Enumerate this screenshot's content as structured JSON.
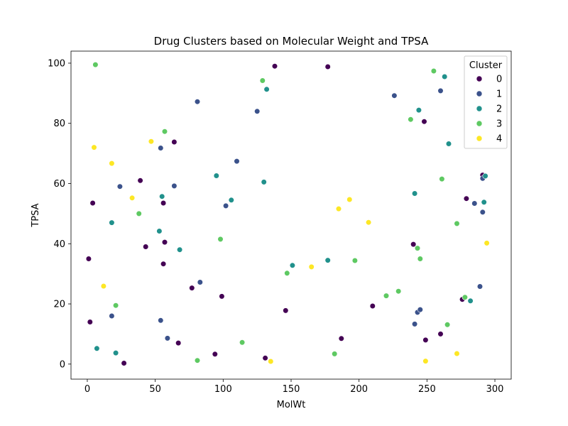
{
  "chart_data": {
    "type": "scatter",
    "title": "Drug Clusters based on Molecular Weight and TPSA",
    "xlabel": "MolWt",
    "ylabel": "TPSA",
    "xlim": [
      -12,
      312
    ],
    "ylim": [
      -5,
      104
    ],
    "xticks": [
      0,
      50,
      100,
      150,
      200,
      250,
      300
    ],
    "yticks": [
      0,
      20,
      40,
      60,
      80,
      100
    ],
    "grid": false,
    "legend": {
      "title": "Cluster",
      "placement": "top-right"
    },
    "series": [
      {
        "name": "0",
        "color": "#440154",
        "points": [
          [
            138,
            99
          ],
          [
            177,
            98.8
          ],
          [
            64,
            73.8
          ],
          [
            248,
            80.6
          ],
          [
            39,
            61
          ],
          [
            291,
            62.8
          ],
          [
            279,
            55
          ],
          [
            4,
            53.5
          ],
          [
            56,
            53.5
          ],
          [
            43,
            39
          ],
          [
            57,
            40.5
          ],
          [
            240,
            39.8
          ],
          [
            1,
            35
          ],
          [
            56,
            33.3
          ],
          [
            77,
            25.3
          ],
          [
            99,
            22.5
          ],
          [
            210,
            19.3
          ],
          [
            276,
            21.5
          ],
          [
            146,
            17.8
          ],
          [
            2,
            14
          ],
          [
            67,
            7
          ],
          [
            187,
            8.5
          ],
          [
            249,
            8
          ],
          [
            260,
            10
          ],
          [
            94,
            3.3
          ],
          [
            131,
            2
          ],
          [
            27,
            0.3
          ]
        ]
      },
      {
        "name": "1",
        "color": "#3b528b",
        "points": [
          [
            226,
            89.2
          ],
          [
            260,
            90.8
          ],
          [
            81,
            87.2
          ],
          [
            125,
            84
          ],
          [
            54,
            71.8
          ],
          [
            110,
            67.4
          ],
          [
            24,
            59
          ],
          [
            64,
            59.2
          ],
          [
            102,
            52.6
          ],
          [
            291,
            61.7
          ],
          [
            285,
            53.4
          ],
          [
            291,
            50.5
          ],
          [
            83,
            27.2
          ],
          [
            289,
            25.8
          ],
          [
            18,
            16
          ],
          [
            54,
            14.5
          ],
          [
            243,
            17.2
          ],
          [
            245,
            18.1
          ],
          [
            241,
            13.3
          ],
          [
            59,
            8.6
          ]
        ]
      },
      {
        "name": "2",
        "color": "#21918c",
        "points": [
          [
            132,
            91.3
          ],
          [
            244,
            84.4
          ],
          [
            263,
            95.5
          ],
          [
            266,
            73.2
          ],
          [
            95,
            62.6
          ],
          [
            130,
            60.5
          ],
          [
            241,
            56.7
          ],
          [
            293,
            62.5
          ],
          [
            55,
            55.7
          ],
          [
            106,
            54.5
          ],
          [
            292,
            53.8
          ],
          [
            18,
            47
          ],
          [
            53,
            44.2
          ],
          [
            68,
            38
          ],
          [
            151,
            32.8
          ],
          [
            177,
            34.5
          ],
          [
            282,
            21
          ],
          [
            7,
            5.2
          ],
          [
            21,
            3.7
          ]
        ]
      },
      {
        "name": "3",
        "color": "#5ec962",
        "points": [
          [
            6,
            99.5
          ],
          [
            129,
            94.2
          ],
          [
            255,
            97.4
          ],
          [
            57,
            77.3
          ],
          [
            238,
            81.3
          ],
          [
            261,
            61.5
          ],
          [
            38,
            50
          ],
          [
            272,
            46.7
          ],
          [
            98,
            41.5
          ],
          [
            243,
            38.5
          ],
          [
            245,
            35
          ],
          [
            197,
            34.4
          ],
          [
            147,
            30.2
          ],
          [
            229,
            24.2
          ],
          [
            220,
            22.7
          ],
          [
            278,
            22.2
          ],
          [
            21,
            19.5
          ],
          [
            265,
            13.1
          ],
          [
            114,
            7.2
          ],
          [
            182,
            3.4
          ],
          [
            81,
            1.2
          ]
        ]
      },
      {
        "name": "4",
        "color": "#fde725",
        "points": [
          [
            47,
            74
          ],
          [
            5,
            72
          ],
          [
            18,
            66.7
          ],
          [
            33,
            55.2
          ],
          [
            185,
            51.6
          ],
          [
            193,
            54.7
          ],
          [
            207,
            47.1
          ],
          [
            294,
            40.2
          ],
          [
            165,
            32.3
          ],
          [
            12,
            25.9
          ],
          [
            272,
            3.5
          ],
          [
            135,
            0.9
          ],
          [
            249,
            1
          ]
        ]
      }
    ]
  }
}
